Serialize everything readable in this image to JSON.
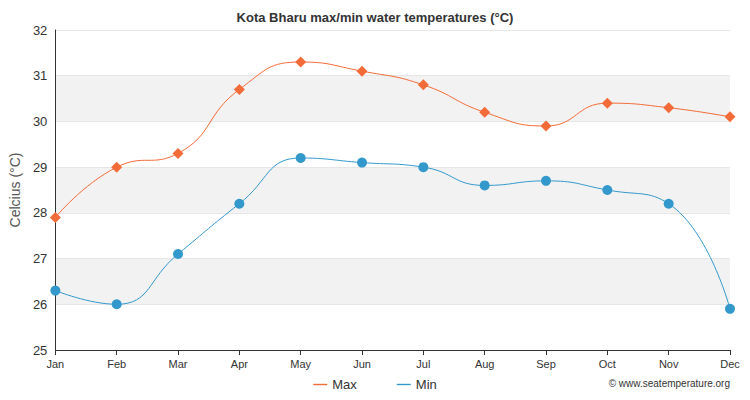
{
  "chart_data": {
    "type": "line",
    "title": "Kota Bharu max/min water temperatures (°C)",
    "y_label": "Celcius (°C)",
    "categories": [
      "Jan",
      "Feb",
      "Mar",
      "Apr",
      "May",
      "Jun",
      "Jul",
      "Aug",
      "Sep",
      "Oct",
      "Nov",
      "Dec"
    ],
    "series": [
      {
        "name": "Max",
        "color": "#f26b38",
        "marker": "diamond",
        "line_style": "solid",
        "values": [
          27.9,
          29.0,
          29.3,
          30.7,
          31.3,
          31.1,
          30.8,
          30.2,
          29.9,
          30.4,
          30.3,
          30.1
        ]
      },
      {
        "name": "Min",
        "color": "#3399cc",
        "marker": "circle",
        "line_style": "solid",
        "values": [
          26.3,
          26.0,
          27.1,
          28.2,
          29.2,
          29.1,
          29.0,
          28.6,
          28.7,
          28.5,
          28.2,
          25.9
        ]
      }
    ],
    "ylim": [
      25,
      32
    ],
    "yticks": [
      25,
      26,
      27,
      28,
      29,
      30,
      31,
      32
    ],
    "grid": true,
    "legend": "bottom",
    "annotations": [
      "© www.seatemperature.org"
    ]
  }
}
